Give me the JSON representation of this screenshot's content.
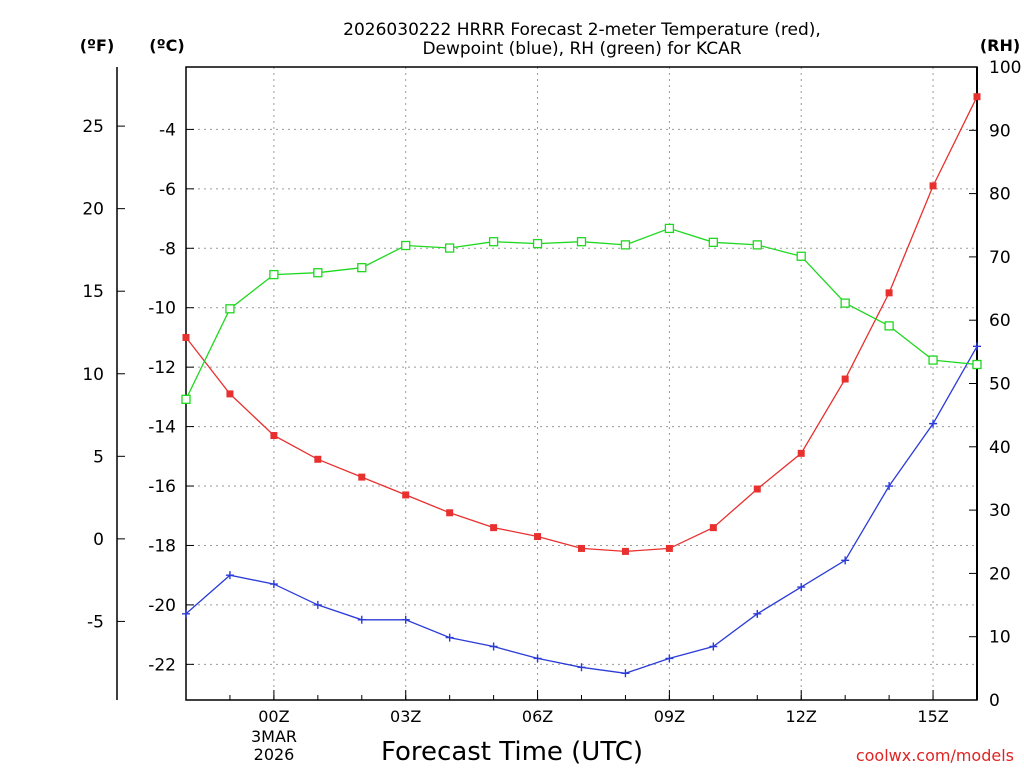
{
  "chart_data": {
    "type": "line",
    "title_line1": "2026030222 HRRR Forecast 2-meter Temperature (red),",
    "title_line2": "Dewpoint (blue), RH (green) for KCAR",
    "xlabel": "Forecast Time (UTC)",
    "date_line1": "3MAR",
    "date_line2": "2026",
    "credit": "coolwx.com/models",
    "unit_f": "(ºF)",
    "unit_c": "(ºC)",
    "unit_rh": "(RH)",
    "x_hours": [
      -2,
      -1,
      0,
      1,
      2,
      3,
      4,
      5,
      6,
      7,
      8,
      9,
      10,
      11,
      12,
      13,
      14,
      15,
      16
    ],
    "x_ticks": [
      {
        "hour": 0,
        "label": "00Z"
      },
      {
        "hour": 3,
        "label": "03Z"
      },
      {
        "hour": 6,
        "label": "06Z"
      },
      {
        "hour": 9,
        "label": "09Z"
      },
      {
        "hour": 12,
        "label": "12Z"
      },
      {
        "hour": 15,
        "label": "15Z"
      }
    ],
    "xlim": [
      -2,
      16
    ],
    "c_range": [
      -23.2,
      -1.9
    ],
    "c_ticks": [
      "-4",
      "-6",
      "-8",
      "-10",
      "-12",
      "-14",
      "-16",
      "-18",
      "-20",
      "-22"
    ],
    "f_ticks": [
      "25",
      "20",
      "15",
      "10",
      "5",
      "0",
      "-5"
    ],
    "rh_range": [
      0,
      100
    ],
    "rh_ticks": [
      "100",
      "90",
      "80",
      "70",
      "60",
      "50",
      "40",
      "30",
      "20",
      "10",
      "0"
    ],
    "series": [
      {
        "name": "Temperature",
        "unit": "C",
        "color": "#e8302f",
        "marker": "filled-square",
        "values": [
          -11.0,
          -12.9,
          -14.3,
          -15.1,
          -15.7,
          -16.3,
          -16.9,
          -17.4,
          -17.7,
          -18.1,
          -18.2,
          -18.1,
          -17.4,
          -16.1,
          -14.9,
          -12.4,
          -9.5,
          -5.9,
          -2.9
        ]
      },
      {
        "name": "Dewpoint",
        "unit": "C",
        "color": "#2b3bd8",
        "marker": "plus",
        "values": [
          -20.3,
          -19.0,
          -19.3,
          -20.0,
          -20.5,
          -20.5,
          -21.1,
          -21.4,
          -21.8,
          -22.1,
          -22.3,
          -21.8,
          -21.4,
          -20.3,
          -19.4,
          -18.5,
          -16.0,
          -13.9,
          -11.3
        ]
      },
      {
        "name": "RH",
        "unit": "%",
        "color": "#1fd81f",
        "marker": "open-square",
        "values": [
          47.5,
          61.8,
          67.2,
          67.5,
          68.3,
          71.8,
          71.4,
          72.4,
          72.1,
          72.4,
          71.9,
          74.5,
          72.3,
          71.9,
          70.1,
          62.7,
          59.1,
          53.7,
          53.0
        ]
      }
    ]
  }
}
